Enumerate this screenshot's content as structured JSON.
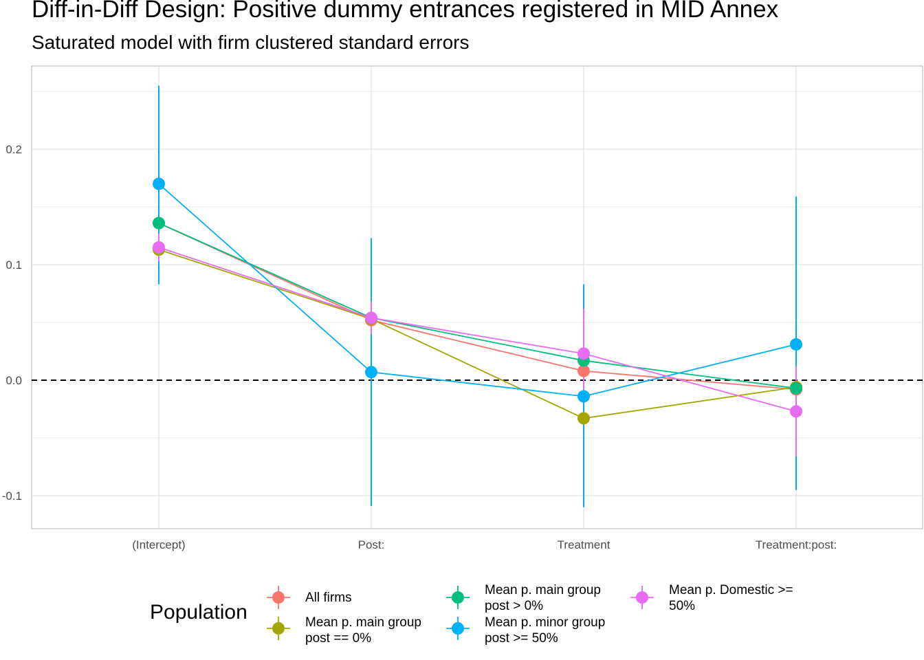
{
  "chart_data": {
    "type": "line",
    "title": "Diff-in-Diff Design: Positive dummy entrances registered in MID Annex",
    "subtitle": "Saturated model with firm clustered standard errors",
    "xlabel": "",
    "ylabel": "",
    "categories": [
      "(Intercept)",
      "Post:",
      "Treatment",
      "Treatment:post:"
    ],
    "y_ticks": [
      -0.1,
      0.0,
      0.1,
      0.2
    ],
    "y_tick_labels": [
      "-0.1",
      "0.0",
      "0.1",
      "0.2"
    ],
    "ylim": [
      -0.128,
      0.272
    ],
    "reference_line": {
      "y": 0,
      "style": "dashed"
    },
    "grid": true,
    "legend": {
      "title": "Population",
      "position": "bottom"
    },
    "series": [
      {
        "name": "All firms",
        "color": "#F8766D",
        "values": [
          0.136,
          0.052,
          0.008,
          -0.008
        ],
        "lower": [
          0.12,
          0.045,
          -0.002,
          -0.018
        ],
        "upper": [
          0.152,
          0.06,
          0.018,
          0.002
        ]
      },
      {
        "name": "Mean p. main group\npost == 0%",
        "color": "#A3A500",
        "values": [
          0.113,
          0.053,
          -0.033,
          -0.006
        ],
        "lower": [
          0.083,
          0.045,
          -0.04,
          -0.013
        ],
        "upper": [
          0.143,
          0.06,
          -0.026,
          0.001
        ]
      },
      {
        "name": "Mean p. main group\npost > 0%",
        "color": "#00BF7D",
        "values": [
          0.136,
          0.054,
          0.017,
          -0.007
        ],
        "lower": [
          0.12,
          0.046,
          0.005,
          -0.018
        ],
        "upper": [
          0.152,
          0.062,
          0.029,
          0.004
        ]
      },
      {
        "name": "Mean p. minor group\npost >= 50%",
        "color": "#00B0F6",
        "values": [
          0.17,
          0.007,
          -0.014,
          0.031
        ],
        "lower": [
          0.083,
          -0.109,
          -0.11,
          -0.095
        ],
        "upper": [
          0.255,
          0.123,
          0.083,
          0.159
        ]
      },
      {
        "name": "Mean p. Domestic >=\n50%",
        "color": "#E76BF3",
        "values": [
          0.115,
          0.054,
          0.023,
          -0.027
        ],
        "lower": [
          0.103,
          0.04,
          -0.016,
          -0.066
        ],
        "upper": [
          0.127,
          0.068,
          0.062,
          0.012
        ]
      }
    ]
  }
}
